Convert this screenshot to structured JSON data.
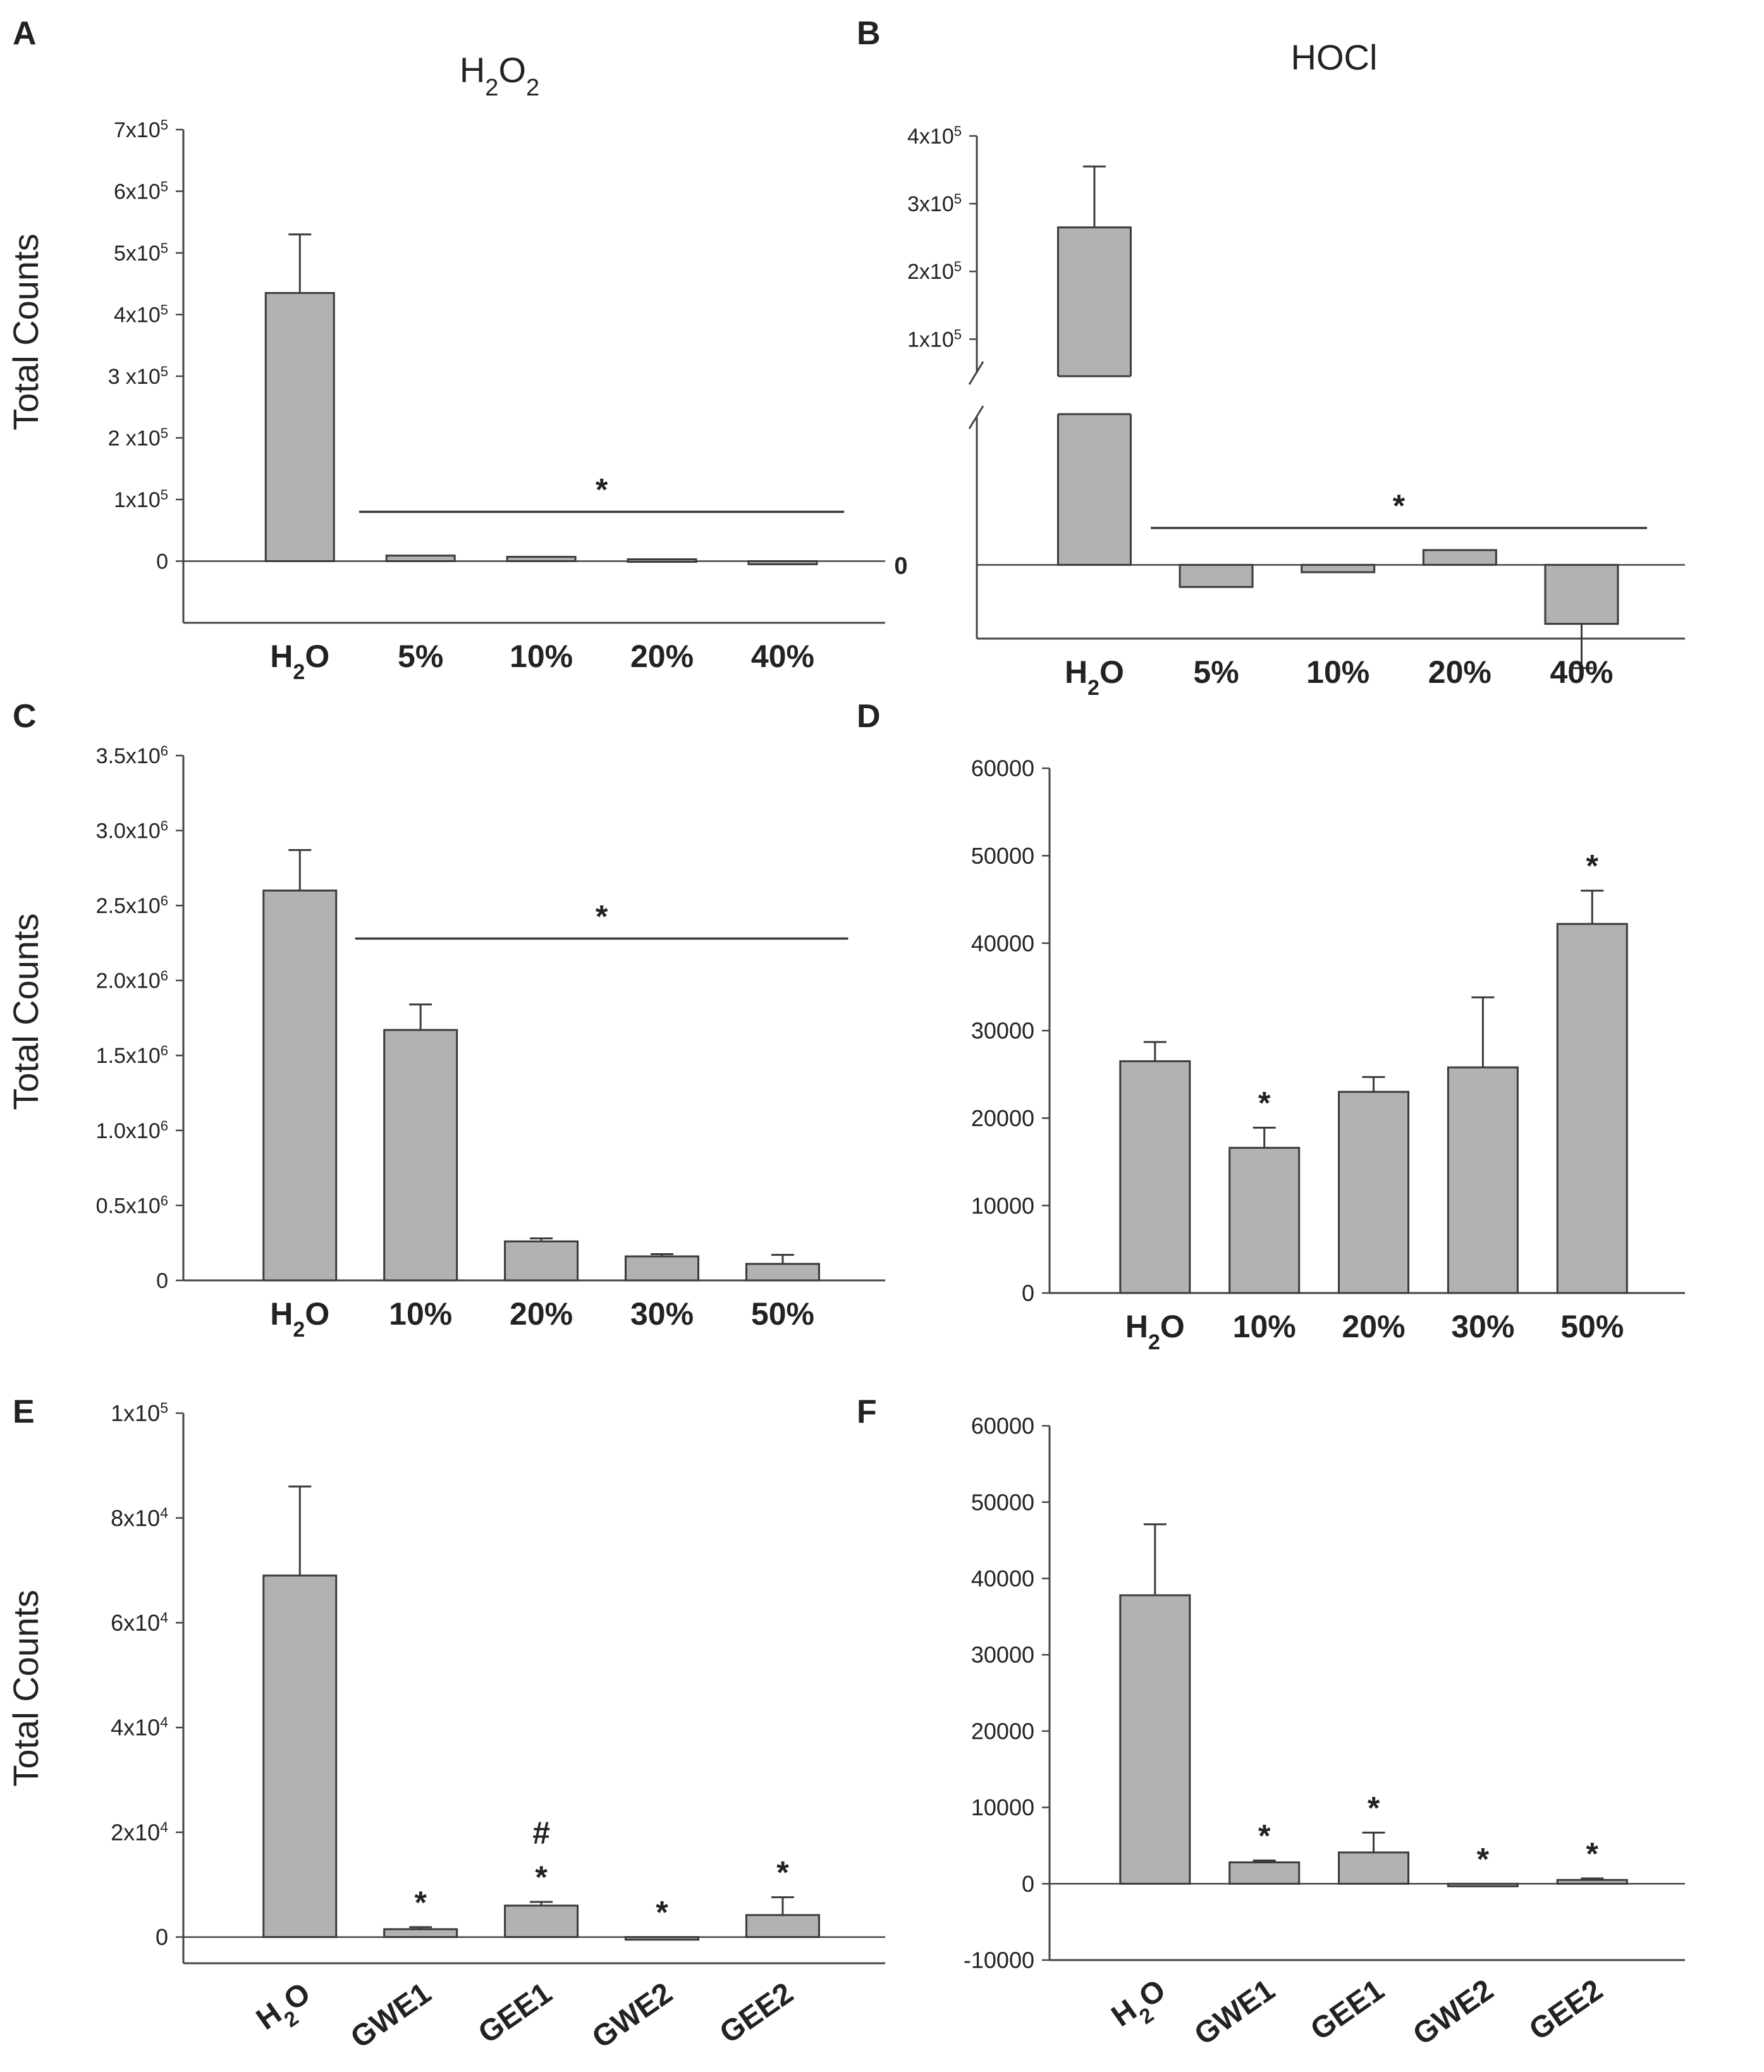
{
  "figure": {
    "ylabel": "Total Counts"
  },
  "chart_data": [
    {
      "panel": "A",
      "type": "bar",
      "title": "H₂O₂",
      "ylabel": "Total Counts",
      "categories": [
        "H₂O",
        "5%",
        "10%",
        "20%",
        "40%"
      ],
      "values": [
        435000,
        9000,
        7000,
        3000,
        -5000
      ],
      "errors": [
        95000,
        0,
        0,
        0,
        0
      ],
      "ylim": [
        -100000,
        700000
      ],
      "yticks": [
        {
          "v": 0,
          "label": "0"
        },
        {
          "v": 100000,
          "label": "1x10^5"
        },
        {
          "v": 200000,
          "label": "2 x10^5"
        },
        {
          "v": 300000,
          "label": "3 x10^5"
        },
        {
          "v": 400000,
          "label": "4x10^5"
        },
        {
          "v": 500000,
          "label": "5x10^5"
        },
        {
          "v": 600000,
          "label": "6x10^5"
        },
        {
          "v": 700000,
          "label": "7x10^5"
        }
      ],
      "zero_line": true,
      "significance": [
        {
          "type": "bracket",
          "from": 1,
          "to": 4,
          "y": 80000,
          "label": "*"
        }
      ]
    },
    {
      "panel": "B",
      "type": "bar",
      "title": "HOCl",
      "ylabel": "",
      "categories": [
        "H₂O",
        "5%",
        "10%",
        "20%",
        "40%"
      ],
      "values": [
        265000,
        -3000,
        -1000,
        2000,
        -8000
      ],
      "errors": [
        90000,
        0,
        0,
        0,
        6000
      ],
      "ylim": [
        -10000,
        400000
      ],
      "axis_break": true,
      "yticks": [
        {
          "v": 100000,
          "label": "1x10^5"
        },
        {
          "v": 200000,
          "label": "2x10^5"
        },
        {
          "v": 300000,
          "label": "3x10^5"
        },
        {
          "v": 400000,
          "label": "4x10^5"
        }
      ],
      "zero_label": "0",
      "zero_line": true,
      "significance": [
        {
          "type": "bracket",
          "from": 1,
          "to": 4,
          "y": 5000,
          "label": "*"
        }
      ]
    },
    {
      "panel": "C",
      "type": "bar",
      "title": "",
      "ylabel": "Total Counts",
      "categories": [
        "H₂O",
        "10%",
        "20%",
        "30%",
        "50%"
      ],
      "values": [
        2600000,
        1670000,
        260000,
        160000,
        110000
      ],
      "errors": [
        270000,
        170000,
        20000,
        15000,
        60000
      ],
      "ylim": [
        0,
        3500000
      ],
      "yticks": [
        {
          "v": 0,
          "label": "0"
        },
        {
          "v": 500000,
          "label": "0.5x10^6"
        },
        {
          "v": 1000000,
          "label": "1.0x10^6"
        },
        {
          "v": 1500000,
          "label": "1.5x10^6"
        },
        {
          "v": 2000000,
          "label": "2.0x10^6"
        },
        {
          "v": 2500000,
          "label": "2.5x10^6"
        },
        {
          "v": 3000000,
          "label": "3.0x10^6"
        },
        {
          "v": 3500000,
          "label": "3.5x10^6"
        }
      ],
      "zero_line": false,
      "significance": [
        {
          "type": "bracket",
          "from": 1,
          "to": 4,
          "y": 2280000,
          "label": "*"
        }
      ]
    },
    {
      "panel": "D",
      "type": "bar",
      "title": "",
      "ylabel": "",
      "categories": [
        "H₂O",
        "10%",
        "20%",
        "30%",
        "50%"
      ],
      "values": [
        26500,
        16600,
        23000,
        25800,
        42200
      ],
      "errors": [
        2200,
        2300,
        1700,
        8000,
        3800
      ],
      "ylim": [
        0,
        60000
      ],
      "yticks": [
        {
          "v": 0,
          "label": "0"
        },
        {
          "v": 10000,
          "label": "10000"
        },
        {
          "v": 20000,
          "label": "20000"
        },
        {
          "v": 30000,
          "label": "30000"
        },
        {
          "v": 40000,
          "label": "40000"
        },
        {
          "v": 50000,
          "label": "50000"
        },
        {
          "v": 60000,
          "label": "60000"
        }
      ],
      "zero_line": false,
      "significance": [
        {
          "type": "bar",
          "index": 1,
          "label": "*"
        },
        {
          "type": "bar",
          "index": 4,
          "label": "*"
        }
      ]
    },
    {
      "panel": "E",
      "type": "bar",
      "title": "",
      "ylabel": "Total Counts",
      "categories": [
        "H₂O",
        "GWE1",
        "GEE1",
        "GWE2",
        "GEE2"
      ],
      "values": [
        69000,
        1500,
        6000,
        -500,
        4200
      ],
      "errors": [
        17000,
        400,
        700,
        0,
        3400
      ],
      "ylim": [
        -5000,
        100000
      ],
      "yticks": [
        {
          "v": 0,
          "label": "0"
        },
        {
          "v": 20000,
          "label": "2x10^4"
        },
        {
          "v": 40000,
          "label": "4x10^4"
        },
        {
          "v": 60000,
          "label": "6x10^4"
        },
        {
          "v": 80000,
          "label": "8x10^4"
        },
        {
          "v": 100000,
          "label": "1x10^5"
        }
      ],
      "zero_line": true,
      "rotated_labels": true,
      "significance": [
        {
          "type": "bar",
          "index": 1,
          "label": "*"
        },
        {
          "type": "bar",
          "index": 2,
          "label": "*"
        },
        {
          "type": "bar",
          "index": 2,
          "label": "#",
          "stack": 1
        },
        {
          "type": "bar",
          "index": 3,
          "label": "*"
        },
        {
          "type": "bar",
          "index": 4,
          "label": "*"
        }
      ]
    },
    {
      "panel": "F",
      "type": "bar",
      "title": "",
      "ylabel": "",
      "categories": [
        "H₂O",
        "GWE1",
        "GEE1",
        "GWE2",
        "GEE2"
      ],
      "values": [
        37800,
        2800,
        4100,
        -200,
        500
      ],
      "errors": [
        9300,
        250,
        2600,
        0,
        200
      ],
      "ylim": [
        -10000,
        60000
      ],
      "yticks": [
        {
          "v": -10000,
          "label": "-10000"
        },
        {
          "v": 0,
          "label": "0"
        },
        {
          "v": 10000,
          "label": "10000"
        },
        {
          "v": 20000,
          "label": "20000"
        },
        {
          "v": 30000,
          "label": "30000"
        },
        {
          "v": 40000,
          "label": "40000"
        },
        {
          "v": 50000,
          "label": "50000"
        },
        {
          "v": 60000,
          "label": "60000"
        }
      ],
      "zero_line": true,
      "rotated_labels": true,
      "significance": [
        {
          "type": "bar",
          "index": 1,
          "label": "*"
        },
        {
          "type": "bar",
          "index": 2,
          "label": "*"
        },
        {
          "type": "bar",
          "index": 3,
          "label": "*"
        },
        {
          "type": "bar",
          "index": 4,
          "label": "*"
        }
      ]
    }
  ],
  "colors": {
    "bar_fill": "#b2b2b2",
    "bar_stroke": "#3a3a3a",
    "axis": "#444444",
    "text": "#222222"
  }
}
